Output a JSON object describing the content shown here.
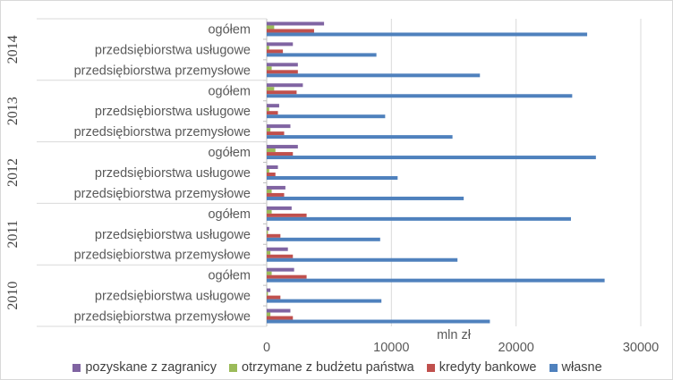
{
  "chart_data": {
    "type": "bar",
    "orientation": "horizontal",
    "xlabel": "mln zł",
    "xlim": [
      0,
      30000
    ],
    "xticks": [
      "0",
      "10000",
      "20000",
      "30000"
    ],
    "grid": true,
    "legend_position": "bottom",
    "years": [
      "2010",
      "2011",
      "2012",
      "2013",
      "2014"
    ],
    "categories": [
      "przedsiębiorstwa przemysłowe",
      "przedsiębiorstwa usługowe",
      "ogółem"
    ],
    "series": [
      {
        "name": "pozyskane z zagranicy",
        "color": "#8064a2",
        "values": [
          [
            1900,
            300,
            2200
          ],
          [
            1700,
            200,
            2000
          ],
          [
            1500,
            900,
            2500
          ],
          [
            1900,
            1000,
            2900
          ],
          [
            2500,
            2100,
            4600
          ]
        ]
      },
      {
        "name": "otrzymane z budżetu państwa",
        "color": "#9bbb59",
        "values": [
          [
            300,
            100,
            400
          ],
          [
            300,
            100,
            400
          ],
          [
            400,
            200,
            700
          ],
          [
            300,
            200,
            600
          ],
          [
            400,
            200,
            600
          ]
        ]
      },
      {
        "name": "kredyty bankowe",
        "color": "#c0504d",
        "values": [
          [
            2100,
            1100,
            3200
          ],
          [
            2100,
            1100,
            3200
          ],
          [
            1400,
            700,
            2100
          ],
          [
            1400,
            900,
            2400
          ],
          [
            2500,
            1300,
            3800
          ]
        ]
      },
      {
        "name": "własne",
        "color": "#4f81bd",
        "values": [
          [
            17900,
            9200,
            27100
          ],
          [
            15300,
            9100,
            24400
          ],
          [
            15800,
            10500,
            26400
          ],
          [
            14900,
            9500,
            24500
          ],
          [
            17100,
            8800,
            25700
          ]
        ]
      }
    ]
  }
}
